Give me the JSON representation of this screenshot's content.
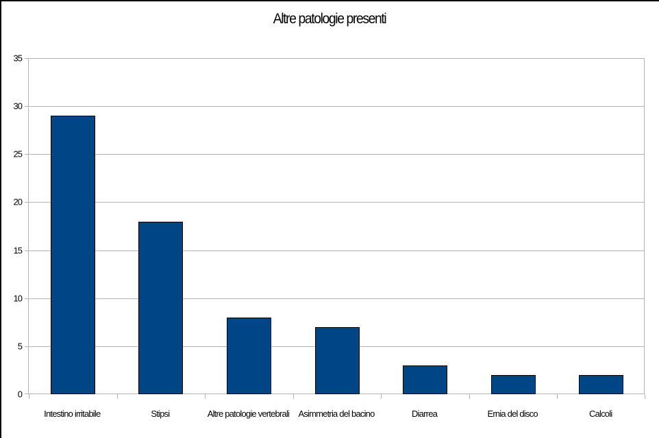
{
  "chart_data": {
    "type": "bar",
    "title": "Altre patologie presenti",
    "xlabel": "",
    "ylabel": "",
    "categories": [
      "Intestino irritabile",
      "Stipsi",
      "Altre patologie vertebrali",
      "Asimmetria del bacino",
      "Diarrea",
      "Ernia del disco",
      "Calcoli"
    ],
    "values": [
      29,
      18,
      8,
      7,
      3,
      2,
      2
    ],
    "ylim": [
      0,
      35
    ],
    "yticks": [
      0,
      5,
      10,
      15,
      20,
      25,
      30,
      35
    ],
    "grid": true,
    "legend": null,
    "bar_color": "#004586"
  },
  "title": "Altre patologie presenti",
  "y_ticks": [
    "0",
    "5",
    "10",
    "15",
    "20",
    "25",
    "30",
    "35"
  ],
  "x_labels": [
    "Intestino irritabile",
    "Stipsi",
    "Altre patologie vertebrali",
    "Asimmetria del bacino",
    "Diarrea",
    "Ernia del disco",
    "Calcoli"
  ]
}
